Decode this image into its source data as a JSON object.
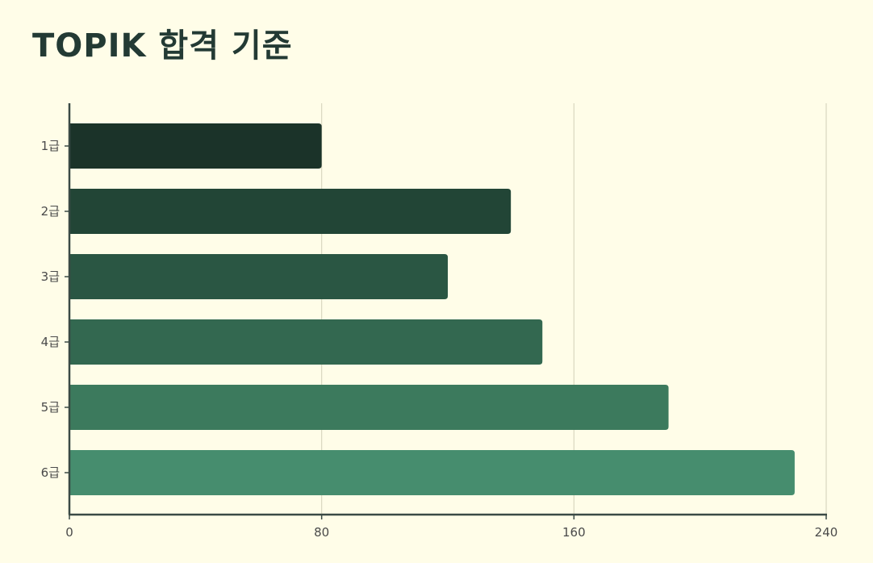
{
  "title": "TOPIK 합격 기준",
  "chart_data": {
    "type": "bar",
    "orientation": "horizontal",
    "title": "TOPIK 합격 기준",
    "categories": [
      "1급",
      "2급",
      "3급",
      "4급",
      "5급",
      "6급"
    ],
    "values": [
      80,
      140,
      120,
      150,
      190,
      230
    ],
    "xlim": [
      0,
      240
    ],
    "xticks": [
      "0",
      "80",
      "160",
      "240"
    ],
    "xlabel": "",
    "ylabel": "",
    "grid": "vertical",
    "legend": "none",
    "colors": [
      "#1b3329",
      "#224536",
      "#2a5643",
      "#336850",
      "#3c7a5d",
      "#468d6e"
    ],
    "axis_color": "#3a4a45",
    "grid_color": "#d9d7c0"
  }
}
